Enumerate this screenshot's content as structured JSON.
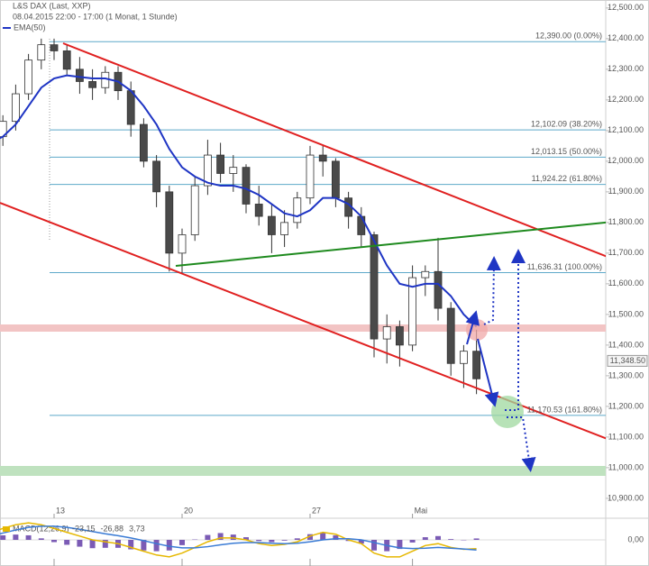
{
  "chart_data": {
    "type": "candlestick",
    "title": "L&S DAX (Last, XXP)",
    "subtitle": "08.04.2015 22:00 - 17:00 (1 Monat, 1 Stunde)",
    "categories": [
      null,
      null,
      null,
      null,
      null,
      "13",
      null,
      null,
      null,
      null,
      null,
      null,
      null,
      null,
      null,
      "20",
      null,
      null,
      null,
      null,
      null,
      null,
      null,
      null,
      null,
      "27",
      null,
      null,
      null,
      null,
      null,
      null,
      null,
      "Mai",
      null,
      null,
      null,
      null,
      null
    ],
    "open": [
      12050,
      12080,
      12130,
      12220,
      12330,
      12380,
      12360,
      12300,
      12260,
      12240,
      12290,
      12230,
      12120,
      12000,
      11900,
      11700,
      11760,
      11920,
      12020,
      11960,
      11980,
      11860,
      11820,
      11760,
      11800,
      11880,
      12020,
      12000,
      11880,
      11820,
      11760,
      11420,
      11460,
      11400,
      11620,
      11640,
      11520,
      11340,
      11380
    ],
    "high": [
      12100,
      12150,
      12250,
      12350,
      12400,
      12400,
      12380,
      12340,
      12300,
      12310,
      12310,
      12260,
      12140,
      12020,
      11920,
      11780,
      11950,
      12070,
      12060,
      12020,
      11990,
      11920,
      11860,
      11840,
      11900,
      12050,
      12050,
      12010,
      11900,
      11850,
      11770,
      11500,
      11480,
      11660,
      11660,
      11750,
      11540,
      11400,
      11450
    ],
    "low": [
      12020,
      12050,
      12100,
      12200,
      12300,
      12330,
      12280,
      12220,
      12200,
      12220,
      12200,
      12080,
      11980,
      11850,
      11640,
      11636,
      11740,
      11890,
      11930,
      11900,
      11830,
      11790,
      11700,
      11720,
      11780,
      11860,
      11950,
      11850,
      11780,
      11720,
      11360,
      11340,
      11330,
      11380,
      11560,
      11480,
      11300,
      11260,
      11240
    ],
    "close": [
      12080,
      12130,
      12220,
      12330,
      12380,
      12360,
      12300,
      12260,
      12240,
      12290,
      12230,
      12120,
      12000,
      11900,
      11700,
      11760,
      11920,
      12020,
      11960,
      11980,
      11860,
      11820,
      11760,
      11800,
      11880,
      12020,
      12000,
      11880,
      11820,
      11760,
      11420,
      11460,
      11400,
      11620,
      11640,
      11520,
      11340,
      11380,
      11290
    ],
    "candle_colors": {
      "up": "#ffffff",
      "down": "#4a4a4a",
      "stroke": "#333333"
    },
    "ylim": [
      10835,
      12526
    ],
    "yticks": [
      {
        "value": 10900,
        "label": "10,900.00"
      },
      {
        "value": 11000,
        "label": "11,000.00"
      },
      {
        "value": 11100,
        "label": "11,100.00"
      },
      {
        "value": 11200,
        "label": "11,200.00"
      },
      {
        "value": 11300,
        "label": "11,300.00"
      },
      {
        "value": 11400,
        "label": "11,400.00"
      },
      {
        "value": 11500,
        "label": "11,500.00"
      },
      {
        "value": 11600,
        "label": "11,600.00"
      },
      {
        "value": 11700,
        "label": "11,700.00"
      },
      {
        "value": 11800,
        "label": "11,800.00"
      },
      {
        "value": 11900,
        "label": "11,900.00"
      },
      {
        "value": 12000,
        "label": "12,000.00"
      },
      {
        "value": 12100,
        "label": "12,100.00"
      },
      {
        "value": 12200,
        "label": "12,200.00"
      },
      {
        "value": 12300,
        "label": "12,300.00"
      },
      {
        "value": 12400,
        "label": "12,400.00"
      },
      {
        "value": 12500,
        "label": "12,500.00"
      }
    ],
    "grid": false,
    "ema": {
      "name": "EMA(50)",
      "color": "#1f35c4",
      "values": [
        12060,
        12080,
        12120,
        12180,
        12240,
        12270,
        12280,
        12275,
        12270,
        12270,
        12260,
        12230,
        12180,
        12120,
        12040,
        11980,
        11950,
        11930,
        11920,
        11920,
        11910,
        11890,
        11860,
        11830,
        11820,
        11840,
        11880,
        11880,
        11860,
        11820,
        11740,
        11660,
        11600,
        11590,
        11600,
        11600,
        11560,
        11500,
        11460
      ]
    },
    "fib_color": "#5ea9c9",
    "fib_levels": [
      {
        "value": 12390,
        "label": "12,390.00 (0.00%)"
      },
      {
        "value": 12102.09,
        "label": "12,102.09 (38.20%)"
      },
      {
        "value": 12013.15,
        "label": "12,013.15 (50.00%)"
      },
      {
        "value": 11924.22,
        "label": "11,924.22 (61.80%)"
      },
      {
        "value": 11636.31,
        "label": "11,636.31 (100.00%)"
      },
      {
        "value": 11170.53,
        "label": "11,170.53 (161.80%)"
      }
    ],
    "last_price": {
      "value": 11348.5,
      "label": "11,348.50"
    },
    "macd": {
      "title": "MACD(12,26,9)",
      "ylim": [
        -50,
        50
      ],
      "yticks": [
        {
          "value": 0,
          "label": "0,00"
        }
      ],
      "series": [
        {
          "color": "#e6b800",
          "values": [
            20,
            30,
            40,
            45,
            40,
            30,
            20,
            10,
            0,
            -5,
            -10,
            -20,
            -30,
            -40,
            -45,
            -35,
            -20,
            -5,
            5,
            5,
            0,
            -10,
            -15,
            -12,
            -5,
            10,
            20,
            15,
            0,
            -10,
            -35,
            -45,
            -45,
            -30,
            -15,
            -10,
            -20,
            -25,
            -23.15
          ],
          "value_labels": [
            null,
            null,
            null,
            null,
            null,
            null,
            null,
            null,
            null,
            null,
            null,
            null,
            null,
            null,
            null,
            null,
            null,
            null,
            null,
            null,
            null,
            null,
            null,
            null,
            null,
            null,
            null,
            null,
            null,
            null,
            null,
            null,
            null,
            null,
            null,
            null,
            null,
            null,
            "-23,15"
          ]
        },
        {
          "color": "#3a7bd5",
          "values": [
            10,
            18,
            26,
            33,
            36,
            36,
            33,
            28,
            22,
            16,
            11,
            5,
            -2,
            -10,
            -17,
            -21,
            -21,
            -18,
            -13,
            -9,
            -7,
            -7,
            -9,
            -10,
            -9,
            -5,
            0,
            3,
            3,
            0,
            -7,
            -15,
            -21,
            -23,
            -22,
            -20,
            -22,
            -24,
            -26.88
          ],
          "value_labels": [
            null,
            null,
            null,
            null,
            null,
            null,
            null,
            null,
            null,
            null,
            null,
            null,
            null,
            null,
            null,
            null,
            null,
            null,
            null,
            null,
            null,
            null,
            null,
            null,
            null,
            null,
            null,
            null,
            null,
            null,
            null,
            null,
            null,
            null,
            null,
            null,
            null,
            null,
            "-26,88"
          ]
        }
      ],
      "histogram": {
        "color": "#7b5bb5",
        "values": [
          10,
          12,
          14,
          12,
          4,
          -6,
          -13,
          -18,
          -22,
          -21,
          -21,
          -25,
          -28,
          -30,
          -28,
          -14,
          1,
          13,
          18,
          14,
          7,
          -3,
          -6,
          -2,
          4,
          15,
          20,
          12,
          -3,
          -10,
          -28,
          -30,
          -24,
          -7,
          7,
          10,
          2,
          -1,
          3.73
        ],
        "value_labels": [
          null,
          null,
          null,
          null,
          null,
          null,
          null,
          null,
          null,
          null,
          null,
          null,
          null,
          null,
          null,
          null,
          null,
          null,
          null,
          null,
          null,
          null,
          null,
          null,
          null,
          null,
          null,
          null,
          null,
          null,
          null,
          null,
          null,
          null,
          null,
          null,
          null,
          null,
          "3,73"
        ]
      }
    }
  }
}
